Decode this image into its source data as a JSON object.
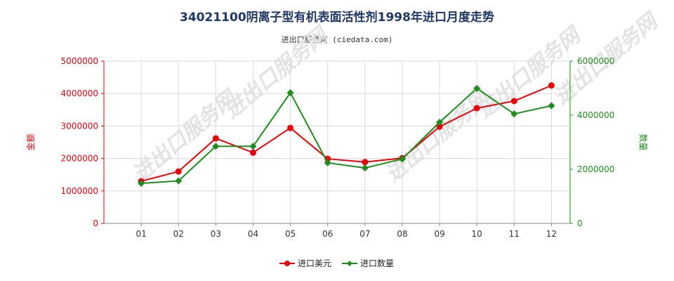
{
  "title": "34021100阴离子型有机表面活性剂1998年进口月度走势",
  "subtitle": "进出口服务网 (ciedata.com)",
  "watermark": "进出口服务网",
  "colors": {
    "left_axis": "#e8000b",
    "right_axis": "#1e8c1e",
    "grid": "#d9d9d9"
  },
  "chart_data": {
    "type": "line",
    "categories": [
      "01",
      "02",
      "03",
      "04",
      "05",
      "06",
      "07",
      "08",
      "09",
      "10",
      "11",
      "12"
    ],
    "ylabel_left": "金额",
    "ylabel_right": "数量",
    "ylim_left": [
      0,
      5000000
    ],
    "ylim_right": [
      0,
      6000000
    ],
    "yticks_left": [
      0,
      1000000,
      2000000,
      3000000,
      4000000,
      5000000
    ],
    "yticks_right": [
      0,
      2000000,
      4000000,
      6000000
    ],
    "grid": true,
    "legend_position": "bottom-center",
    "series": [
      {
        "name": "进口美元",
        "axis": "left",
        "color": "#e8000b",
        "values": [
          1300000,
          1600000,
          2620000,
          2180000,
          2940000,
          1990000,
          1890000,
          2010000,
          2980000,
          3550000,
          3770000,
          4250000
        ]
      },
      {
        "name": "进口数量",
        "axis": "right",
        "color": "#1e8c1e",
        "values": [
          1480000,
          1570000,
          2850000,
          2850000,
          4830000,
          2240000,
          2050000,
          2380000,
          3740000,
          4990000,
          4050000,
          4350000
        ]
      }
    ]
  }
}
